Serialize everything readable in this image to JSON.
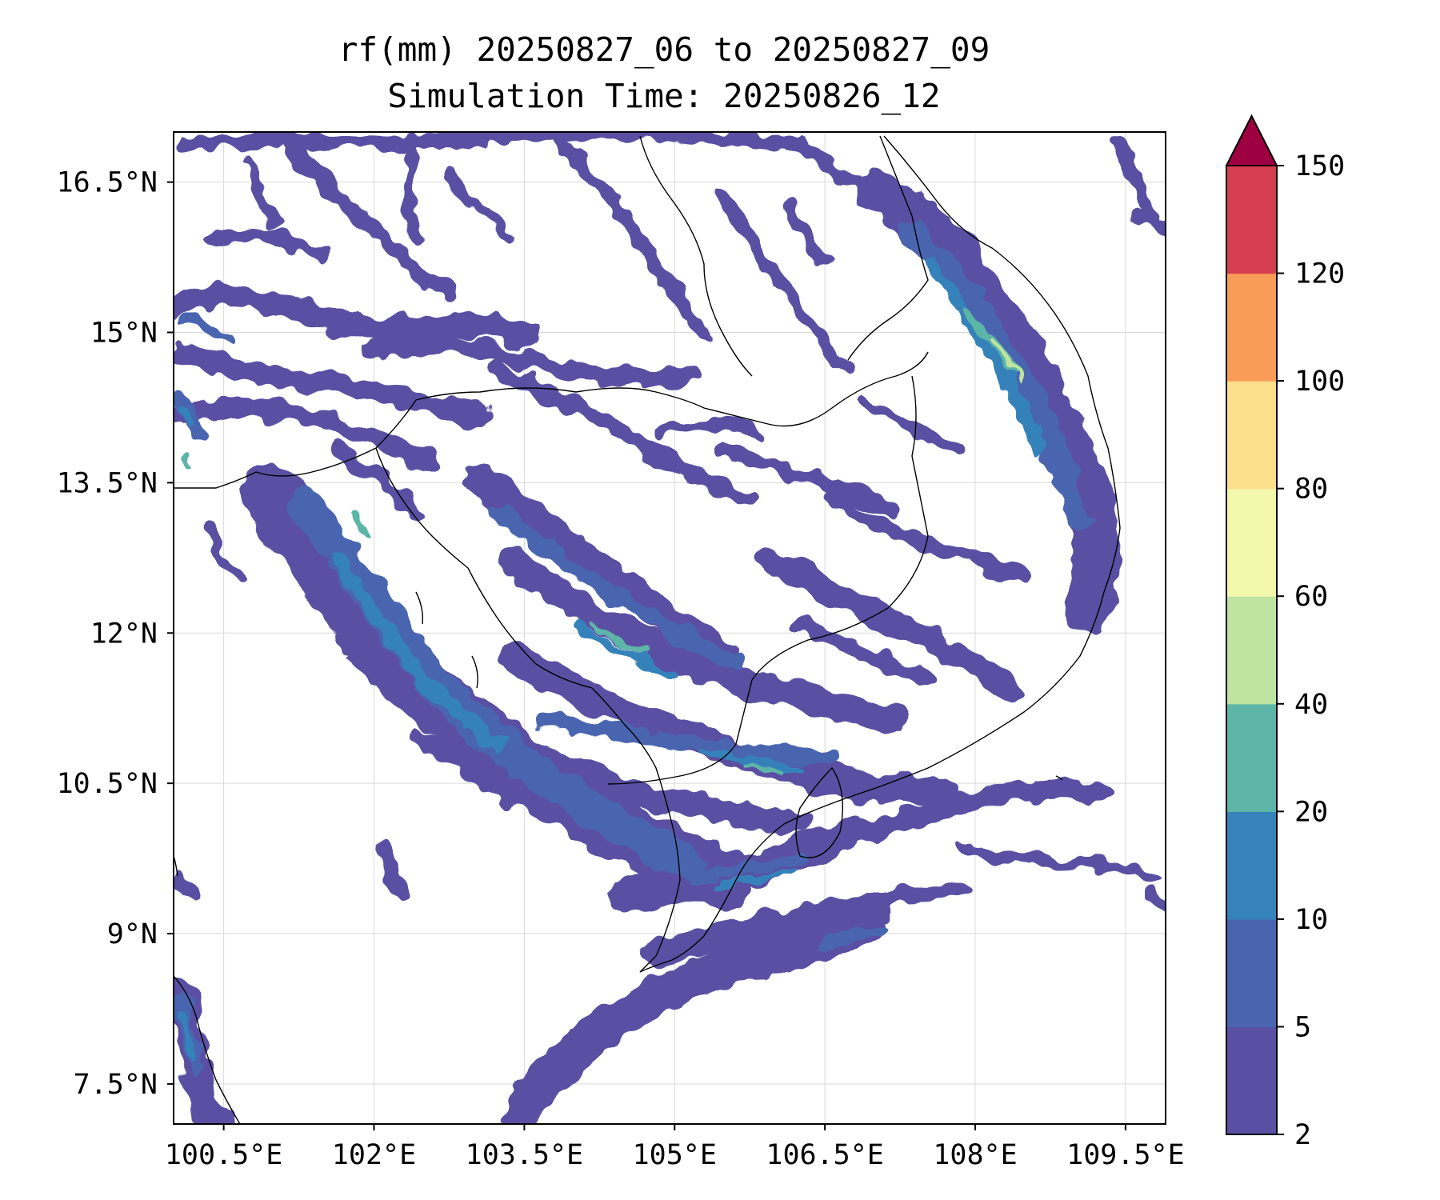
{
  "title": {
    "line1": "rf(mm) 20250827_06 to 20250827_09",
    "line2": "Simulation Time: 20250826_12"
  },
  "map": {
    "lon_range": [
      100.0,
      109.9
    ],
    "lat_range": [
      7.1,
      17.0
    ],
    "x_ticks": [
      {
        "value": 100.5,
        "label": "100.5°E"
      },
      {
        "value": 102.0,
        "label": "102°E"
      },
      {
        "value": 103.5,
        "label": "103.5°E"
      },
      {
        "value": 105.0,
        "label": "105°E"
      },
      {
        "value": 106.5,
        "label": "106.5°E"
      },
      {
        "value": 108.0,
        "label": "108°E"
      },
      {
        "value": 109.5,
        "label": "109.5°E"
      }
    ],
    "y_ticks": [
      {
        "value": 16.5,
        "label": "16.5°N"
      },
      {
        "value": 15.0,
        "label": "15°N"
      },
      {
        "value": 13.5,
        "label": "13.5°N"
      },
      {
        "value": 12.0,
        "label": "12°N"
      },
      {
        "value": 10.5,
        "label": "10.5°N"
      },
      {
        "value": 9.0,
        "label": "9°N"
      },
      {
        "value": 7.5,
        "label": "7.5°N"
      }
    ],
    "grid": true
  },
  "colorbar": {
    "levels": [
      "2",
      "5",
      "10",
      "20",
      "40",
      "60",
      "80",
      "100",
      "120",
      "150"
    ],
    "colors": [
      "#5a4fa2",
      "#4a65b0",
      "#3682ba",
      "#5db5a8",
      "#bfe3a0",
      "#f3f8ac",
      "#fbdf8b",
      "#f99c58",
      "#d63f4f"
    ],
    "extend_color": "#9e0142",
    "extend": "max"
  },
  "rain_colors": {
    "light": "#5a4fa2",
    "moderate": "#4a65b0",
    "heavy": "#3682ba",
    "very_heavy": "#5db5a8",
    "extreme": "#bfe3a0",
    "peak": "#f3f8ac"
  }
}
